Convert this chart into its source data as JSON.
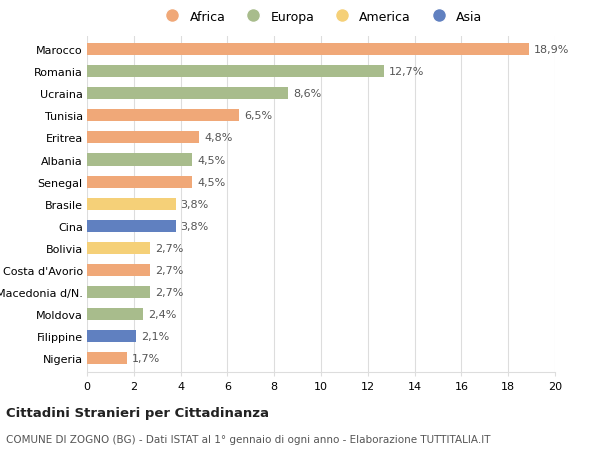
{
  "categories": [
    "Marocco",
    "Romania",
    "Ucraina",
    "Tunisia",
    "Eritrea",
    "Albania",
    "Senegal",
    "Brasile",
    "Cina",
    "Bolivia",
    "Costa d'Avorio",
    "Macedonia d/N.",
    "Moldova",
    "Filippine",
    "Nigeria"
  ],
  "values": [
    18.9,
    12.7,
    8.6,
    6.5,
    4.8,
    4.5,
    4.5,
    3.8,
    3.8,
    2.7,
    2.7,
    2.7,
    2.4,
    2.1,
    1.7
  ],
  "labels": [
    "18,9%",
    "12,7%",
    "8,6%",
    "6,5%",
    "4,8%",
    "4,5%",
    "4,5%",
    "3,8%",
    "3,8%",
    "2,7%",
    "2,7%",
    "2,7%",
    "2,4%",
    "2,1%",
    "1,7%"
  ],
  "continents": [
    "Africa",
    "Europa",
    "Europa",
    "Africa",
    "Africa",
    "Europa",
    "Africa",
    "America",
    "Asia",
    "America",
    "Africa",
    "Europa",
    "Europa",
    "Asia",
    "Africa"
  ],
  "colors": {
    "Africa": "#F0A878",
    "Europa": "#A8BC8C",
    "America": "#F5D078",
    "Asia": "#6080C0"
  },
  "legend_labels": [
    "Africa",
    "Europa",
    "America",
    "Asia"
  ],
  "legend_colors": [
    "#F0A878",
    "#A8BC8C",
    "#F5D078",
    "#6080C0"
  ],
  "title1": "Cittadini Stranieri per Cittadinanza",
  "title2": "COMUNE DI ZOGNO (BG) - Dati ISTAT al 1° gennaio di ogni anno - Elaborazione TUTTITALIA.IT",
  "xlim": [
    0,
    20
  ],
  "xticks": [
    0,
    2,
    4,
    6,
    8,
    10,
    12,
    14,
    16,
    18,
    20
  ],
  "background_color": "#ffffff",
  "grid_color": "#dddddd",
  "bar_height": 0.55
}
